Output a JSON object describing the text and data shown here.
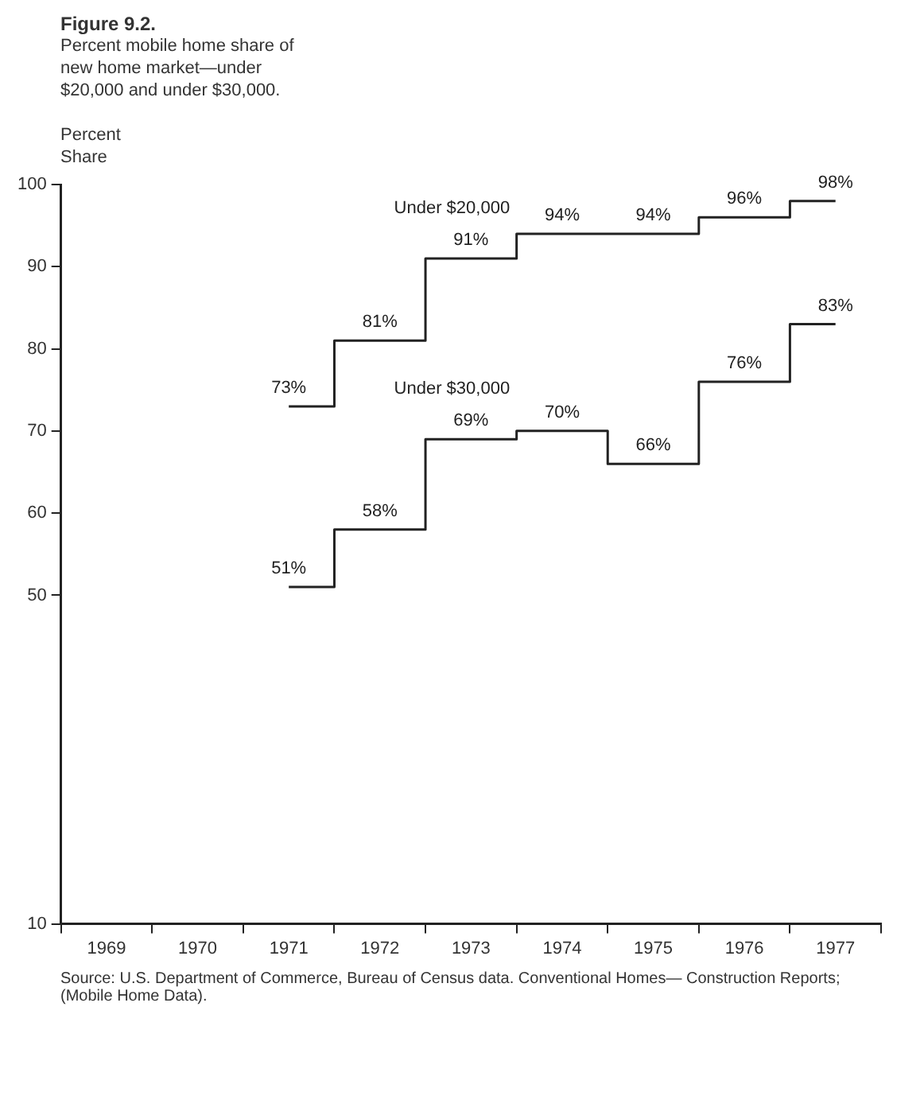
{
  "chart_data": {
    "type": "step",
    "title": "Figure 9.2.",
    "subtitle": "Percent mobile home share of new home market—under $20,000 and under $30,000.",
    "ylabel": "Percent Share",
    "categories": [
      "1969",
      "1970",
      "1971",
      "1972",
      "1973",
      "1974",
      "1975",
      "1976",
      "1977"
    ],
    "series": [
      {
        "name": "Under $20,000",
        "color": "#222222",
        "values": [
          null,
          null,
          73,
          81,
          91,
          94,
          94,
          96,
          98
        ],
        "value_labels": [
          null,
          null,
          "73%",
          "81%",
          "91%",
          "94%",
          "94%",
          "96%",
          "98%"
        ]
      },
      {
        "name": "Under $30,000",
        "color": "#222222",
        "values": [
          null,
          null,
          51,
          58,
          69,
          70,
          66,
          76,
          83
        ],
        "value_labels": [
          null,
          null,
          "51%",
          "58%",
          "69%",
          "70%",
          "66%",
          "76%",
          "83%"
        ]
      }
    ],
    "ylim": [
      10,
      100
    ],
    "yticks": [
      10,
      50,
      60,
      70,
      80,
      90,
      100
    ],
    "grid": false,
    "legend": false,
    "marker": "none",
    "annotations": [
      "Source: U.S. Department of Commerce, Bureau of Census data. Conventional Homes— Construction Reports; (Mobile Home Data)."
    ]
  }
}
